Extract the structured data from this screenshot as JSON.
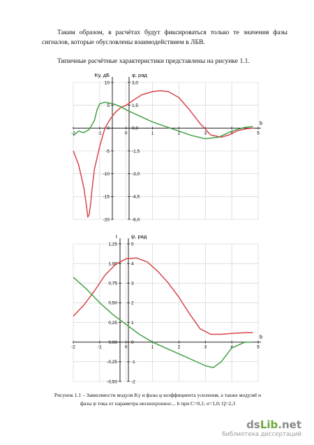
{
  "text": {
    "paragraph1": "Таким образом, в расчётах будут фиксироваться только те значения фазы сигналов, которые обусловлены взаимодействием в ЛБВ.",
    "paragraph2": "Типичные расчётные характеристики представлены на рисунке 1.1.",
    "caption_line1": "Рисунок 1.1 – Зависимости модуля Kу и фазы φ коэффициента усиления, а также модуляI и",
    "caption_line2": "фазы ψ тока от параметра несинхроннос... b при C=0,1; σ=1,0; Q=2,3"
  },
  "watermark": {
    "brand_a": "ds",
    "brand_b": "Lib",
    "brand_c": ".net",
    "subtitle": "библиотека диссертаций"
  },
  "colors": {
    "gain_curve": "#d9444a",
    "phase_curve": "#43a047",
    "axis": "#222222",
    "grid": "#cccccc"
  },
  "chart_data": [
    {
      "type": "line",
      "x_label": "b",
      "y_left_label": "Kу, дБ",
      "y_right_label": "φ, рад",
      "xlim": [
        -2,
        5
      ],
      "ylim_left": [
        -20,
        10
      ],
      "ylim_right": [
        -6,
        3
      ],
      "x_ticks": [
        "-2",
        "-1",
        "0",
        "1",
        "2",
        "3",
        "4",
        "5"
      ],
      "y_left_ticks": [
        "10",
        "5",
        "0",
        "-5",
        "-10",
        "-15",
        "-20"
      ],
      "y_right_ticks": [
        "3,0",
        "1,5",
        "0,0",
        "-1,5",
        "-3,0",
        "-4,5",
        "-6,0"
      ],
      "grid": true,
      "series": [
        {
          "axis": "left",
          "color": "red",
          "x": [
            -2,
            -1.8,
            -1.6,
            -1.5,
            -1.45,
            -1.4,
            -1.35,
            -1.3,
            -1.2,
            -1,
            -0.8,
            -0.6,
            -0.4,
            -0.2,
            0,
            0.3,
            0.6,
            1,
            1.3,
            1.6,
            2,
            2.4,
            2.8,
            3.2,
            3.6,
            3.9,
            4.2,
            4.5,
            4.8
          ],
          "y": [
            -5,
            -8,
            -13,
            -17,
            -19.5,
            -19,
            -17,
            -14,
            -9,
            -4,
            0,
            2,
            3.5,
            4.5,
            5,
            6.2,
            7.3,
            8,
            8.2,
            8,
            6.7,
            4,
            1,
            -1.5,
            -2,
            -1.5,
            -0.6,
            -0.2,
            0
          ]
        },
        {
          "axis": "right",
          "color": "green",
          "x": [
            -2,
            -1.8,
            -1.6,
            -1.4,
            -1.2,
            -1.1,
            -1.0,
            -0.8,
            -0.5,
            -0.2,
            0,
            0.5,
            1,
            1.5,
            2,
            2.5,
            3,
            3.5,
            4,
            4.5,
            4.8
          ],
          "y": [
            -0.5,
            -0.2,
            -0.3,
            -0.1,
            0.5,
            1.2,
            1.6,
            1.7,
            1.6,
            1.4,
            1.2,
            0.8,
            0.4,
            0.1,
            -0.2,
            -0.5,
            -0.7,
            -0.6,
            -0.2,
            0.05,
            0.1
          ]
        }
      ]
    },
    {
      "type": "line",
      "x_label": "b",
      "y_left_label": "I",
      "y_right_label": "ψ, рад",
      "xlim": [
        -2,
        5
      ],
      "ylim_left": [
        -0.5,
        1.25
      ],
      "ylim_right": [
        -2,
        5
      ],
      "x_ticks": [
        "-2",
        "-1",
        "0",
        "1",
        "2",
        "3",
        "4",
        "5"
      ],
      "y_left_ticks": [
        "1,25",
        "1,00",
        "0,75",
        "0,50",
        "0,25",
        "0,00",
        "-0,25",
        "-0,50"
      ],
      "y_right_ticks": [
        "5",
        "4",
        "3",
        "2",
        "1",
        "0",
        "-1",
        "-2"
      ],
      "grid": true,
      "series": [
        {
          "axis": "left",
          "color": "red",
          "x": [
            -2,
            -1.6,
            -1.2,
            -0.8,
            -0.4,
            0,
            0.4,
            0.8,
            1.2,
            1.6,
            2,
            2.4,
            2.8,
            3.2,
            3.6,
            4,
            4.5,
            4.8
          ],
          "y": [
            0.33,
            0.47,
            0.65,
            0.85,
            0.99,
            1.06,
            1.07,
            1.02,
            0.9,
            0.75,
            0.57,
            0.36,
            0.17,
            0.1,
            0.1,
            0.11,
            0.12,
            0.12
          ]
        },
        {
          "axis": "right",
          "color": "green",
          "x": [
            -2,
            -1.5,
            -1,
            -0.5,
            0,
            0.5,
            1,
            1.5,
            2,
            2.5,
            3,
            3.3,
            3.6,
            4,
            4.5,
            4.8
          ],
          "y": [
            3.3,
            2.7,
            2.0,
            1.4,
            0.9,
            0.4,
            0,
            -0.3,
            -0.6,
            -0.9,
            -1.2,
            -1.3,
            -1.0,
            -0.3,
            0,
            0
          ]
        }
      ]
    }
  ]
}
